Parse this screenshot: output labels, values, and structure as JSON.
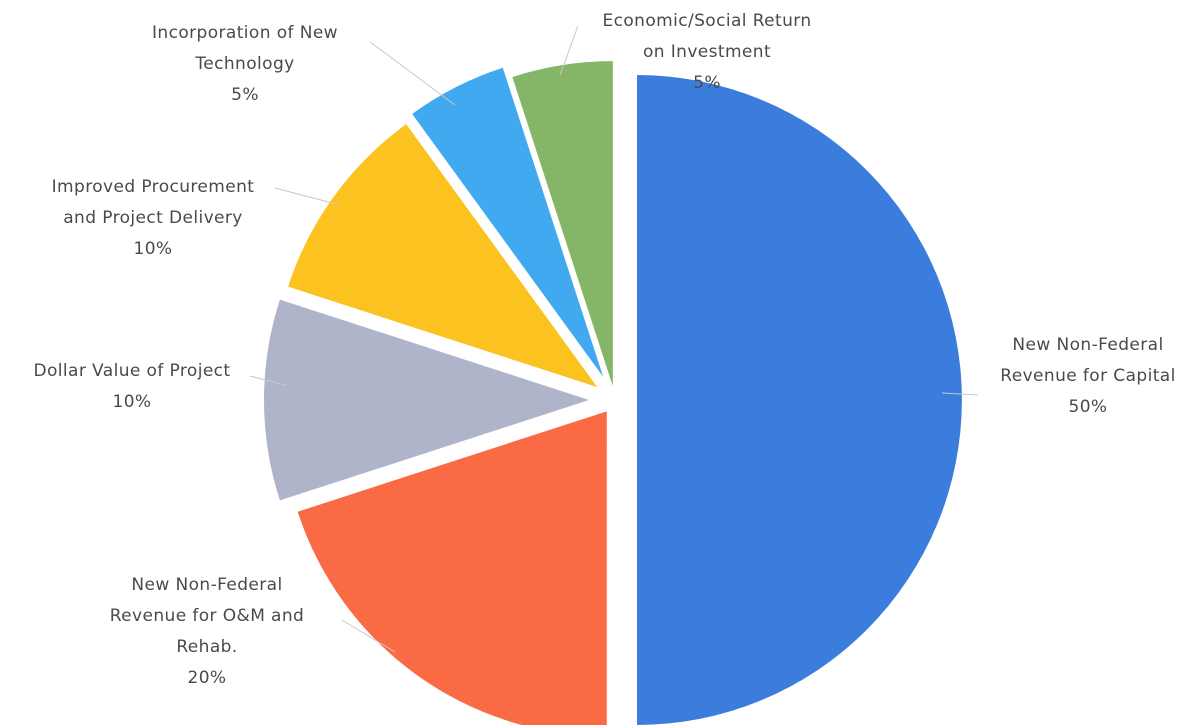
{
  "chart_data": {
    "type": "pie",
    "exploded": true,
    "slices": [
      {
        "label_lines": [
          "New Non-Federal",
          "Revenue for Capital"
        ],
        "value": 50,
        "value_label": "50%",
        "color": "#3b7ddd"
      },
      {
        "label_lines": [
          "New Non-Federal",
          "Revenue for O&M and",
          "Rehab."
        ],
        "value": 20,
        "value_label": "20%",
        "color": "#f96a45"
      },
      {
        "label_lines": [
          "Dollar Value of Project"
        ],
        "value": 10,
        "value_label": "10%",
        "color": "#b0b4ca"
      },
      {
        "label_lines": [
          "Improved Procurement",
          "and Project Delivery"
        ],
        "value": 10,
        "value_label": "10%",
        "color": "#fcc21f"
      },
      {
        "label_lines": [
          "Incorporation of New",
          "Technology"
        ],
        "value": 5,
        "value_label": "5%",
        "color": "#41a9ef"
      },
      {
        "label_lines": [
          "Economic/Social Return",
          "on Investment"
        ],
        "value": 5,
        "value_label": "5%",
        "color": "#85b566"
      }
    ]
  }
}
